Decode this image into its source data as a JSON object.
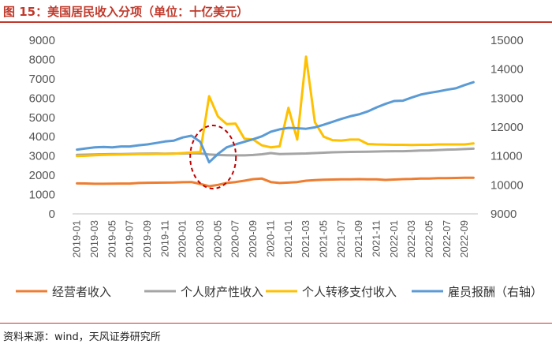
{
  "header": {
    "title": "图 15：美国居民收入分项（单位：十亿美元）"
  },
  "footer": {
    "source": "资料来源：wind，天风证券研究所"
  },
  "chart_data": {
    "type": "line",
    "title": "图 15：美国居民收入分项（单位：十亿美元）",
    "x": [
      "2019-01",
      "2019-02",
      "2019-03",
      "2019-04",
      "2019-05",
      "2019-06",
      "2019-07",
      "2019-08",
      "2019-09",
      "2019-10",
      "2019-11",
      "2019-12",
      "2020-01",
      "2020-02",
      "2020-03",
      "2020-04",
      "2020-05",
      "2020-06",
      "2020-07",
      "2020-08",
      "2020-09",
      "2020-10",
      "2020-11",
      "2020-12",
      "2021-01",
      "2021-02",
      "2021-03",
      "2021-04",
      "2021-05",
      "2021-06",
      "2021-07",
      "2021-08",
      "2021-09",
      "2021-10",
      "2021-11",
      "2021-12",
      "2022-01",
      "2022-02",
      "2022-03",
      "2022-04",
      "2022-05",
      "2022-06",
      "2022-07",
      "2022-08",
      "2022-09",
      "2022-10"
    ],
    "x_tick_labels": [
      "2019-01",
      "2019-03",
      "2019-05",
      "2019-07",
      "2019-09",
      "2019-11",
      "2020-01",
      "2020-03",
      "2020-05",
      "2020-07",
      "2020-09",
      "2020-11",
      "2021-01",
      "2021-03",
      "2021-05",
      "2021-07",
      "2021-09",
      "2021-11",
      "2022-01",
      "2022-03",
      "2022-05",
      "2022-07",
      "2022-09"
    ],
    "y_left": {
      "ylim": [
        0,
        9000
      ],
      "ticks": [
        "0",
        "1000",
        "2000",
        "3000",
        "4000",
        "5000",
        "6000",
        "7000",
        "8000",
        "9000"
      ]
    },
    "y_right": {
      "ylim": [
        9000,
        15000
      ],
      "ticks": [
        "9000",
        "10000",
        "11000",
        "12000",
        "13000",
        "14000",
        "15000"
      ]
    },
    "series": [
      {
        "name": "经营者收入",
        "axis": "left",
        "color": "#ed7d31",
        "values": [
          1580,
          1575,
          1560,
          1560,
          1565,
          1570,
          1570,
          1600,
          1610,
          1615,
          1620,
          1625,
          1640,
          1650,
          1550,
          1430,
          1500,
          1600,
          1650,
          1720,
          1800,
          1830,
          1650,
          1600,
          1620,
          1650,
          1720,
          1750,
          1770,
          1780,
          1790,
          1790,
          1800,
          1790,
          1790,
          1760,
          1780,
          1800,
          1810,
          1830,
          1830,
          1850,
          1850,
          1860,
          1870,
          1870
        ]
      },
      {
        "name": "个人财产性收入",
        "axis": "left",
        "color": "#a5a5a5",
        "values": [
          3060,
          3070,
          3080,
          3090,
          3095,
          3100,
          3110,
          3120,
          3125,
          3130,
          3120,
          3130,
          3130,
          3140,
          3130,
          3080,
          3050,
          3040,
          3030,
          3030,
          3050,
          3090,
          3150,
          3100,
          3110,
          3120,
          3130,
          3150,
          3170,
          3190,
          3200,
          3210,
          3215,
          3220,
          3230,
          3240,
          3250,
          3250,
          3260,
          3280,
          3290,
          3310,
          3330,
          3340,
          3360,
          3380
        ]
      },
      {
        "name": "个人转移支付收入",
        "axis": "left",
        "color": "#ffc000",
        "values": [
          3000,
          3010,
          3040,
          3060,
          3070,
          3080,
          3090,
          3100,
          3100,
          3110,
          3110,
          3120,
          3150,
          3180,
          3200,
          6100,
          5050,
          4650,
          4680,
          3900,
          3850,
          3550,
          3450,
          3500,
          5500,
          3850,
          8150,
          4750,
          4000,
          3820,
          3800,
          3850,
          3850,
          3620,
          3600,
          3590,
          3580,
          3580,
          3570,
          3580,
          3580,
          3600,
          3600,
          3600,
          3600,
          3650
        ]
      },
      {
        "name": "雇员报酬（右轴）",
        "axis": "right",
        "color": "#5b9bd5",
        "values": [
          11220,
          11260,
          11300,
          11310,
          11300,
          11330,
          11330,
          11370,
          11400,
          11450,
          11500,
          11530,
          11640,
          11700,
          11490,
          10780,
          11070,
          11300,
          11400,
          11490,
          11580,
          11680,
          11840,
          11920,
          11970,
          11960,
          11940,
          11990,
          12080,
          12180,
          12280,
          12370,
          12440,
          12540,
          12680,
          12800,
          12900,
          12910,
          13020,
          13120,
          13180,
          13230,
          13290,
          13340,
          13450,
          13550
        ]
      }
    ],
    "legend": {
      "placement": "bottom"
    },
    "annotations": [
      {
        "type": "dashed-ellipse",
        "color": "#c00000",
        "x": "2020-04"
      }
    ],
    "grid": false
  }
}
